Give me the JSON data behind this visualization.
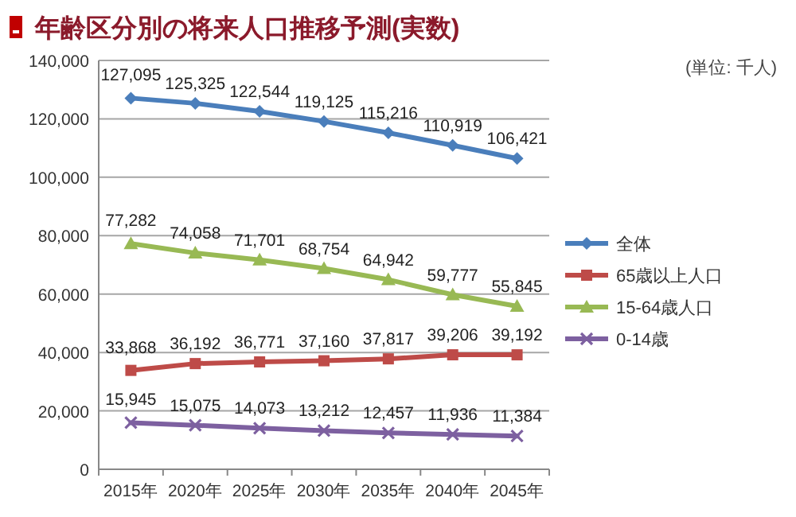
{
  "chart_data": {
    "type": "line",
    "title": "年齢区分別の将来人口推移予測(実数)",
    "annotations": [
      "(単位: 千人)"
    ],
    "categories": [
      "2015年",
      "2020年",
      "2025年",
      "2030年",
      "2035年",
      "2040年",
      "2045年"
    ],
    "series": [
      {
        "name": "全体",
        "color": "#4a7ebb",
        "marker": "diamond",
        "values": [
          127095,
          125325,
          122544,
          119125,
          115216,
          110919,
          106421
        ],
        "value_labels": [
          "127,095",
          "125,325",
          "122,544",
          "119,125",
          "115,216",
          "110,919",
          "106,421"
        ]
      },
      {
        "name": "65歳以上人口",
        "color": "#be4b48",
        "marker": "square",
        "values": [
          33868,
          36192,
          36771,
          37160,
          37817,
          39206,
          39192
        ],
        "value_labels": [
          "33,868",
          "36,192",
          "36,771",
          "37,160",
          "37,817",
          "39,206",
          "39,192"
        ]
      },
      {
        "name": "15-64歳人口",
        "color": "#98b954",
        "marker": "triangle",
        "values": [
          77282,
          74058,
          71701,
          68754,
          64942,
          59777,
          55845
        ],
        "value_labels": [
          "77,282",
          "74,058",
          "71,701",
          "68,754",
          "64,942",
          "59,777",
          "55,845"
        ]
      },
      {
        "name": "0-14歳",
        "color": "#7d60a0",
        "marker": "cross",
        "values": [
          15945,
          15075,
          14073,
          13212,
          12457,
          11936,
          11384
        ],
        "value_labels": [
          "15,945",
          "15,075",
          "14,073",
          "13,212",
          "12,457",
          "11,936",
          "11,384"
        ]
      }
    ],
    "ylim": [
      0,
      140000
    ],
    "yticks": [
      {
        "value": 0,
        "label": "0"
      },
      {
        "value": 20000,
        "label": "20,000"
      },
      {
        "value": 40000,
        "label": "40,000"
      },
      {
        "value": 60000,
        "label": "60,000"
      },
      {
        "value": 80000,
        "label": "80,000"
      },
      {
        "value": 100000,
        "label": "100,000"
      },
      {
        "value": 120000,
        "label": "120,000"
      },
      {
        "value": 140000,
        "label": "140,000"
      }
    ],
    "grid": "y",
    "legend": "right"
  }
}
